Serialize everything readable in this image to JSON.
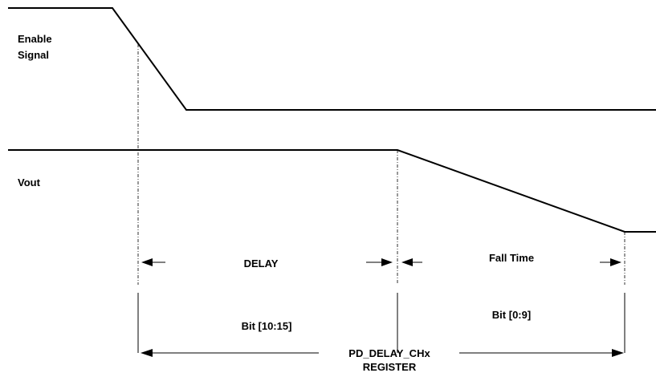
{
  "diagram": {
    "signals": {
      "enable_label_line1": "Enable",
      "enable_label_line2": "Signal",
      "vout_label": "Vout"
    },
    "intervals": {
      "delay_label": "DELAY",
      "fall_time_label": "Fall Time",
      "delay_bits": "Bit [10:15]",
      "fall_time_bits": "Bit [0:9]"
    },
    "register": {
      "name_line1": "PD_DELAY_CHx",
      "name_line2": "REGISTER"
    }
  }
}
